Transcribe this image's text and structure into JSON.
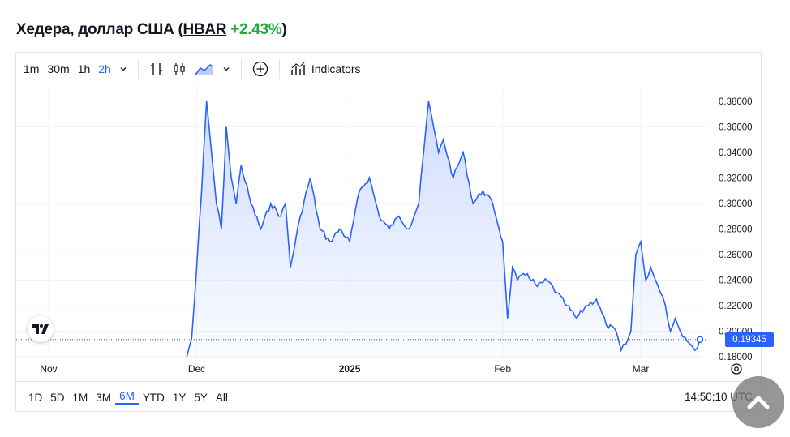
{
  "header": {
    "title_prefix": "Хедера, доллар США (",
    "ticker": "HBAR",
    "change": "+2.43%",
    "title_suffix": ")"
  },
  "toolbar": {
    "intervals": [
      "1m",
      "30m",
      "1h",
      "2h"
    ],
    "active_interval": "2h",
    "indicators_label": "Indicators",
    "icons": [
      "chevron-down-icon",
      "bar-chart-icon",
      "candlestick-icon",
      "area-chart-icon",
      "chevron-down-icon",
      "plus-circle-icon",
      "indicators-icon"
    ]
  },
  "ranges": [
    "1D",
    "5D",
    "1M",
    "3M",
    "6M",
    "YTD",
    "1Y",
    "5Y",
    "All"
  ],
  "active_range": "6M",
  "clock": "14:50:10 UTC",
  "last_price": "0.19345",
  "colors": {
    "line": "#2962ff",
    "positive": "#22ab3a",
    "accent": "#2962ff"
  },
  "chart_data": {
    "type": "area",
    "y_ticks": [
      "0.18000",
      "0.20000",
      "0.22000",
      "0.24000",
      "0.26000",
      "0.28000",
      "0.30000",
      "0.32000",
      "0.34000",
      "0.36000",
      "0.38000"
    ],
    "x_ticks": [
      "Nov",
      "Dec",
      "2025",
      "Feb",
      "Mar"
    ],
    "ylim": [
      0.18,
      0.385
    ],
    "x": [
      "2024-11-29",
      "2024-11-30",
      "2024-12-01",
      "2024-12-02",
      "2024-12-03",
      "2024-12-04",
      "2024-12-05",
      "2024-12-06",
      "2024-12-07",
      "2024-12-08",
      "2024-12-09",
      "2024-12-10",
      "2024-12-12",
      "2024-12-14",
      "2024-12-16",
      "2024-12-18",
      "2024-12-19",
      "2024-12-20",
      "2024-12-22",
      "2024-12-24",
      "2024-12-26",
      "2024-12-28",
      "2024-12-30",
      "2025-01-01",
      "2025-01-03",
      "2025-01-05",
      "2025-01-07",
      "2025-01-09",
      "2025-01-11",
      "2025-01-13",
      "2025-01-15",
      "2025-01-16",
      "2025-01-17",
      "2025-01-18",
      "2025-01-19",
      "2025-01-20",
      "2025-01-22",
      "2025-01-24",
      "2025-01-26",
      "2025-01-28",
      "2025-01-30",
      "2025-02-01",
      "2025-02-02",
      "2025-02-03",
      "2025-02-04",
      "2025-02-06",
      "2025-02-08",
      "2025-02-10",
      "2025-02-12",
      "2025-02-14",
      "2025-02-16",
      "2025-02-18",
      "2025-02-20",
      "2025-02-22",
      "2025-02-24",
      "2025-02-25",
      "2025-02-26",
      "2025-02-27",
      "2025-02-28",
      "2025-03-01",
      "2025-03-02",
      "2025-03-03",
      "2025-03-04",
      "2025-03-05",
      "2025-03-06",
      "2025-03-07",
      "2025-03-08",
      "2025-03-09",
      "2025-03-10",
      "2025-03-11",
      "2025-03-12",
      "2025-03-13"
    ],
    "values": [
      0.18,
      0.195,
      0.25,
      0.31,
      0.38,
      0.34,
      0.3,
      0.28,
      0.36,
      0.32,
      0.3,
      0.33,
      0.3,
      0.28,
      0.3,
      0.29,
      0.3,
      0.25,
      0.29,
      0.32,
      0.28,
      0.27,
      0.28,
      0.27,
      0.31,
      0.32,
      0.29,
      0.28,
      0.29,
      0.28,
      0.3,
      0.34,
      0.38,
      0.36,
      0.34,
      0.35,
      0.32,
      0.34,
      0.3,
      0.31,
      0.3,
      0.27,
      0.21,
      0.25,
      0.24,
      0.245,
      0.235,
      0.24,
      0.23,
      0.22,
      0.21,
      0.22,
      0.225,
      0.205,
      0.2,
      0.185,
      0.19,
      0.2,
      0.26,
      0.27,
      0.24,
      0.25,
      0.24,
      0.23,
      0.22,
      0.2,
      0.21,
      0.2,
      0.195,
      0.19,
      0.185,
      0.19345
    ]
  }
}
